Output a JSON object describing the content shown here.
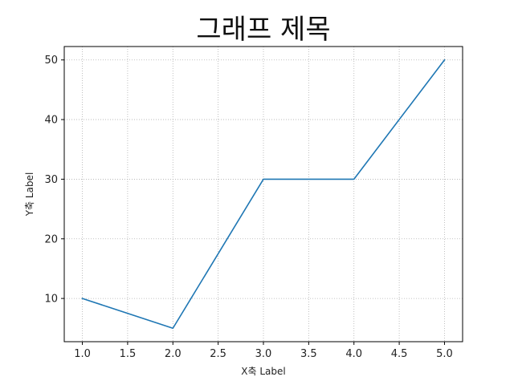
{
  "chart_data": {
    "type": "line",
    "title": "그래프 제목",
    "xlabel": "X축 Label",
    "ylabel": "Y축 Label",
    "x": [
      1.0,
      2.0,
      3.0,
      4.0,
      5.0
    ],
    "series": [
      {
        "values": [
          10,
          5,
          30,
          30,
          50
        ],
        "color": "#1f77b4"
      }
    ],
    "xlim": [
      0.8,
      5.2
    ],
    "ylim": [
      2.75,
      52.25
    ],
    "xticks": [
      "1.0",
      "1.5",
      "2.0",
      "2.5",
      "3.0",
      "3.5",
      "4.0",
      "4.5",
      "5.0"
    ],
    "yticks": [
      "10",
      "20",
      "30",
      "40",
      "50"
    ],
    "grid": true,
    "grid_style": "dotted"
  }
}
